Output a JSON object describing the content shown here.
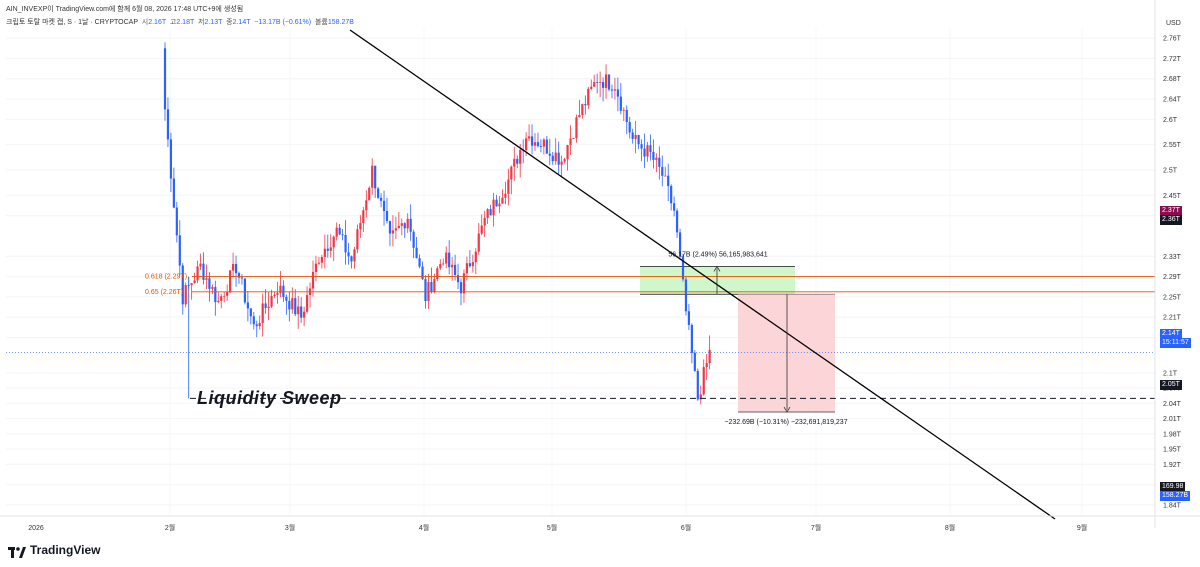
{
  "header": {
    "attribution": "AIN_INVEXP이 TradingView.com에 함께 6월 08, 2026 17:48 UTC+9에 생성됨",
    "symbol": "크립토 토탈 마켓 캡, S · 1날 · CRYPTOCAP",
    "ohlc": [
      {
        "label": "시",
        "value": "2.16T"
      },
      {
        "label": "고",
        "value": "2.18T"
      },
      {
        "label": "저",
        "value": "2.13T"
      },
      {
        "label": "종",
        "value": "2.14T"
      }
    ],
    "change": "−13.17B (−0.61%)",
    "volume_label": "볼륨",
    "volume_value": "158.27B"
  },
  "currency": "USD",
  "footer": {
    "brand": "TradingView"
  },
  "chart_data": {
    "type": "candlestick",
    "ylim": [
      1.82,
      2.78
    ],
    "y_ticks": [
      "2.76T",
      "2.72T",
      "2.68T",
      "2.64T",
      "2.6T",
      "2.55T",
      "2.5T",
      "2.45T",
      "2.41T",
      "2.33T",
      "2.29T",
      "2.25T",
      "2.21T",
      "2.17T",
      "2.1T",
      "2.07T",
      "2.04T",
      "2.01T",
      "1.98T",
      "1.95T",
      "1.92T",
      "1.88T",
      "1.84T"
    ],
    "x_ticks": [
      "2026",
      "2월",
      "3월",
      "4월",
      "5월",
      "6월",
      "7월",
      "8월",
      "9월"
    ],
    "price_badges": {
      "high_a": "2.37T",
      "high_b": "2.36T",
      "last": "2.14T",
      "countdown": "15:11:57",
      "sweep_level": "2.05T",
      "volume_a": "169.98",
      "volume_b": "158.27B"
    },
    "fib_levels": [
      {
        "label": "0.618 (2.29T)",
        "value": 2.29
      },
      {
        "label": "0.65 (2.26T)",
        "value": 2.26
      }
    ],
    "sweep_level": 2.05,
    "sweep_text": "Liquidity Sweep",
    "measure_up": "56.17B (2.49%) 56,165,983,641",
    "measure_down": "−232.69B (−10.31%) −232,691,819,237",
    "colors": {
      "up": "#f23645",
      "down": "#2962ff",
      "trend": "#000000",
      "fib": "#e65100",
      "green_zone": "#c8f5c0",
      "red_zone": "#fcd0d4"
    },
    "anchors": [
      {
        "d": 0,
        "v": 2.62
      },
      {
        "d": 6,
        "v": 2.25
      },
      {
        "d": 12,
        "v": 2.31
      },
      {
        "d": 18,
        "v": 2.24
      },
      {
        "d": 24,
        "v": 2.31
      },
      {
        "d": 30,
        "v": 2.19
      },
      {
        "d": 38,
        "v": 2.27
      },
      {
        "d": 46,
        "v": 2.21
      },
      {
        "d": 52,
        "v": 2.33
      },
      {
        "d": 58,
        "v": 2.38
      },
      {
        "d": 63,
        "v": 2.32
      },
      {
        "d": 70,
        "v": 2.5
      },
      {
        "d": 76,
        "v": 2.36
      },
      {
        "d": 82,
        "v": 2.41
      },
      {
        "d": 88,
        "v": 2.25
      },
      {
        "d": 94,
        "v": 2.33
      },
      {
        "d": 100,
        "v": 2.27
      },
      {
        "d": 108,
        "v": 2.4
      },
      {
        "d": 116,
        "v": 2.48
      },
      {
        "d": 122,
        "v": 2.57
      },
      {
        "d": 128,
        "v": 2.55
      },
      {
        "d": 134,
        "v": 2.52
      },
      {
        "d": 140,
        "v": 2.61
      },
      {
        "d": 146,
        "v": 2.68
      },
      {
        "d": 152,
        "v": 2.67
      },
      {
        "d": 158,
        "v": 2.56
      },
      {
        "d": 164,
        "v": 2.53
      },
      {
        "d": 168,
        "v": 2.49
      },
      {
        "d": 172,
        "v": 2.42
      },
      {
        "d": 176,
        "v": 2.22
      },
      {
        "d": 180,
        "v": 2.05
      },
      {
        "d": 184,
        "v": 2.14
      }
    ]
  }
}
